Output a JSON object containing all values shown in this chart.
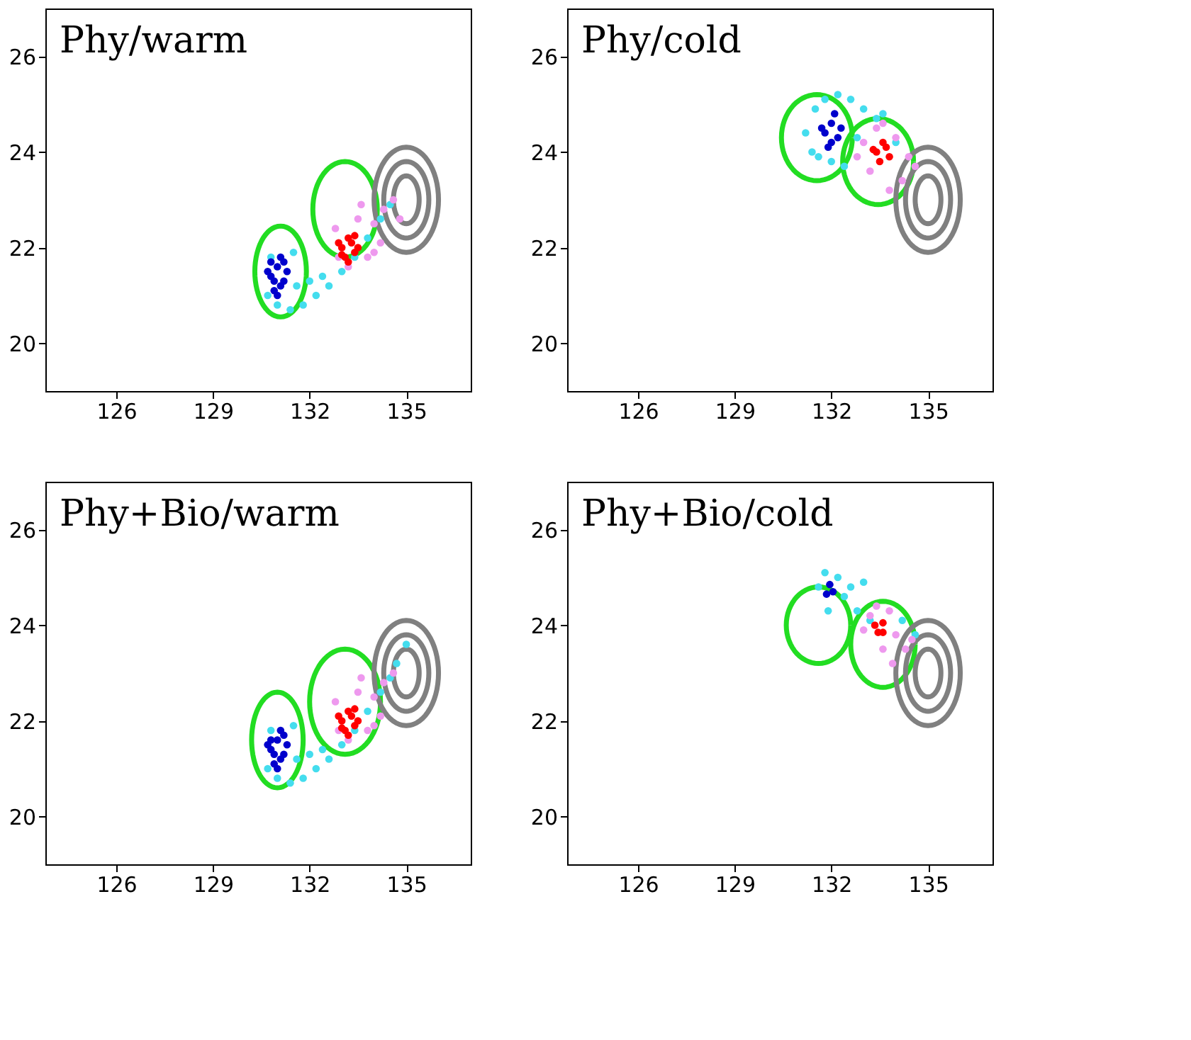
{
  "chart_data": [
    {
      "type": "scatter",
      "title": "Phy/warm",
      "xlim": [
        123.8,
        137
      ],
      "ylim": [
        19,
        27
      ],
      "xticks": [
        126,
        129,
        132,
        135
      ],
      "yticks": [
        20,
        22,
        24,
        26
      ],
      "series": [
        {
          "type": "scatter",
          "marker": "circle",
          "color": "#44ddee",
          "x": [
            130.7,
            131.0,
            131.4,
            131.8,
            132.2,
            132.6,
            133.0,
            133.4,
            133.8,
            134.2,
            134.5,
            131.6,
            132.0,
            130.8,
            131.5,
            132.4
          ],
          "values": [
            21.0,
            20.8,
            20.7,
            20.8,
            21.0,
            21.2,
            21.5,
            21.8,
            22.2,
            22.6,
            22.9,
            21.2,
            21.3,
            21.8,
            21.9,
            21.4
          ]
        },
        {
          "type": "scatter",
          "marker": "circle",
          "color": "#ee99ee",
          "x": [
            132.8,
            133.5,
            134.0,
            134.3,
            134.6,
            133.8,
            133.2,
            134.2,
            134.8,
            133.6,
            134.0,
            132.9
          ],
          "values": [
            22.4,
            22.6,
            22.5,
            22.8,
            23.0,
            21.8,
            21.6,
            22.1,
            22.6,
            22.9,
            21.9,
            21.8
          ]
        },
        {
          "type": "scatter",
          "marker": "circle",
          "color": "#0000cc",
          "x": [
            130.8,
            131.0,
            131.2,
            130.9,
            131.1,
            130.7,
            131.3,
            131.0,
            130.9,
            131.2,
            131.1,
            130.8
          ],
          "values": [
            21.4,
            21.6,
            21.3,
            21.1,
            21.8,
            21.5,
            21.5,
            21.0,
            21.3,
            21.7,
            21.2,
            21.7
          ]
        },
        {
          "type": "scatter",
          "marker": "circle",
          "color": "#ff0000",
          "x": [
            133.0,
            133.2,
            133.4,
            133.1,
            133.3,
            132.9,
            133.5,
            133.2,
            133.0,
            133.4
          ],
          "values": [
            22.0,
            22.2,
            21.9,
            21.8,
            22.1,
            22.1,
            22.0,
            21.7,
            21.85,
            22.25
          ]
        }
      ]
    },
    {
      "type": "scatter",
      "title": "Phy/cold",
      "xlim": [
        123.8,
        137
      ],
      "ylim": [
        19,
        27
      ],
      "xticks": [
        126,
        129,
        132,
        135
      ],
      "yticks": [
        20,
        22,
        24,
        26
      ],
      "series": [
        {
          "type": "scatter",
          "marker": "circle",
          "color": "#44ddee",
          "x": [
            131.2,
            131.5,
            131.8,
            132.2,
            132.6,
            133.0,
            133.4,
            131.6,
            132.4,
            132.8,
            131.4,
            132.0,
            133.6,
            134.0
          ],
          "values": [
            24.4,
            24.9,
            25.1,
            25.2,
            25.1,
            24.9,
            24.7,
            23.9,
            23.7,
            24.3,
            24.0,
            23.8,
            24.8,
            24.2
          ]
        },
        {
          "type": "scatter",
          "marker": "circle",
          "color": "#ee99ee",
          "x": [
            133.0,
            133.4,
            134.0,
            134.4,
            134.2,
            133.2,
            133.8,
            134.6,
            132.8,
            133.6
          ],
          "values": [
            24.2,
            24.5,
            24.3,
            23.9,
            23.4,
            23.6,
            23.2,
            23.7,
            23.9,
            24.6
          ]
        },
        {
          "type": "scatter",
          "marker": "circle",
          "color": "#0000cc",
          "x": [
            131.8,
            132.0,
            132.2,
            131.9,
            132.1,
            131.7,
            132.3,
            132.0
          ],
          "values": [
            24.4,
            24.6,
            24.3,
            24.1,
            24.8,
            24.5,
            24.5,
            24.2
          ]
        },
        {
          "type": "scatter",
          "marker": "circle",
          "color": "#ff0000",
          "x": [
            133.4,
            133.6,
            133.8,
            133.5,
            133.7,
            133.3
          ],
          "values": [
            24.0,
            24.2,
            23.9,
            23.8,
            24.1,
            24.05
          ]
        }
      ]
    },
    {
      "type": "scatter",
      "title": "Phy+Bio/warm",
      "xlim": [
        123.8,
        137
      ],
      "ylim": [
        19,
        27
      ],
      "xticks": [
        126,
        129,
        132,
        135
      ],
      "yticks": [
        20,
        22,
        24,
        26
      ],
      "series": [
        {
          "type": "scatter",
          "marker": "circle",
          "color": "#44ddee",
          "x": [
            130.7,
            131.0,
            131.4,
            131.8,
            132.2,
            132.6,
            133.0,
            133.4,
            133.8,
            134.2,
            134.5,
            134.7,
            135.0,
            131.6,
            132.0,
            130.8,
            131.5,
            132.4
          ],
          "values": [
            21.0,
            20.8,
            20.7,
            20.8,
            21.0,
            21.2,
            21.5,
            21.8,
            22.2,
            22.6,
            22.9,
            23.2,
            23.6,
            21.2,
            21.3,
            21.8,
            21.9,
            21.4
          ]
        },
        {
          "type": "scatter",
          "marker": "circle",
          "color": "#ee99ee",
          "x": [
            132.8,
            133.5,
            134.0,
            134.3,
            134.6,
            133.8,
            133.2,
            134.2,
            133.6,
            134.0,
            132.9
          ],
          "values": [
            22.4,
            22.6,
            22.5,
            22.8,
            23.0,
            21.8,
            21.6,
            22.1,
            22.9,
            21.9,
            21.8
          ]
        },
        {
          "type": "scatter",
          "marker": "circle",
          "color": "#0000cc",
          "x": [
            130.8,
            131.0,
            131.2,
            130.9,
            131.1,
            130.7,
            131.3,
            131.0,
            130.9,
            131.2,
            131.1,
            130.8
          ],
          "values": [
            21.4,
            21.6,
            21.3,
            21.1,
            21.8,
            21.5,
            21.5,
            21.0,
            21.3,
            21.7,
            21.2,
            21.6
          ]
        },
        {
          "type": "scatter",
          "marker": "circle",
          "color": "#ff0000",
          "x": [
            133.0,
            133.2,
            133.4,
            133.1,
            133.3,
            132.9,
            133.5,
            133.2,
            133.0,
            133.4
          ],
          "values": [
            22.0,
            22.2,
            21.9,
            21.8,
            22.1,
            22.1,
            22.0,
            21.7,
            21.85,
            22.25
          ]
        }
      ]
    },
    {
      "type": "scatter",
      "title": "Phy+Bio/cold",
      "xlim": [
        123.8,
        137
      ],
      "ylim": [
        19,
        27
      ],
      "xticks": [
        126,
        129,
        132,
        135
      ],
      "yticks": [
        20,
        22,
        24,
        26
      ],
      "series": [
        {
          "type": "scatter",
          "marker": "circle",
          "color": "#44ddee",
          "x": [
            131.6,
            131.8,
            132.2,
            132.4,
            132.8,
            133.2,
            131.9,
            132.6,
            134.2,
            134.6,
            133.0
          ],
          "values": [
            24.8,
            25.1,
            25.0,
            24.6,
            24.3,
            24.1,
            24.3,
            24.8,
            24.1,
            23.8,
            24.9
          ]
        },
        {
          "type": "scatter",
          "marker": "circle",
          "color": "#ee99ee",
          "x": [
            133.2,
            133.4,
            133.8,
            134.0,
            134.3,
            133.6,
            133.0,
            134.5,
            133.9
          ],
          "values": [
            24.2,
            24.4,
            24.3,
            23.8,
            23.5,
            23.5,
            23.9,
            23.7,
            23.2
          ]
        },
        {
          "type": "scatter",
          "marker": "circle",
          "color": "#0000cc",
          "x": [
            131.85,
            132.05,
            131.95
          ],
          "values": [
            24.65,
            24.7,
            24.85
          ]
        },
        {
          "type": "scatter",
          "marker": "circle",
          "color": "#ff0000",
          "x": [
            133.35,
            133.6,
            133.45,
            133.6
          ],
          "values": [
            24.0,
            24.05,
            23.85,
            23.85
          ]
        }
      ]
    }
  ]
}
